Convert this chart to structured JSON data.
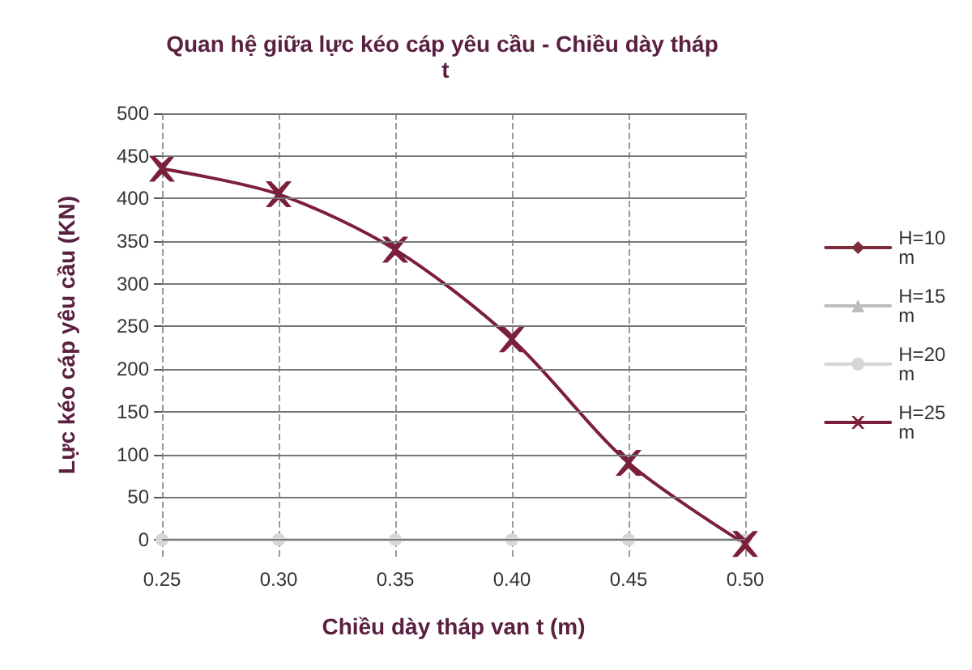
{
  "chart_data": {
    "type": "line",
    "title": "Quan hệ giữa lực kéo cáp yêu cầu - Chiều dày tháp t",
    "xlabel": "Chiều dày tháp van t (m)",
    "ylabel": "Lực kéo cáp yêu cầu (KN)",
    "categories": [
      "0.25",
      "0.30",
      "0.35",
      "0.40",
      "0.45",
      "0.50"
    ],
    "series": [
      {
        "name": "H=10 m",
        "color": "#7b2d3b",
        "marker": "diamond",
        "values": [
          null,
          null,
          null,
          null,
          null,
          null
        ]
      },
      {
        "name": "H=15 m",
        "color": "#bdbdbd",
        "marker": "triangle",
        "values": [
          null,
          null,
          null,
          null,
          null,
          null
        ]
      },
      {
        "name": "H=20 m",
        "color": "#d6d6d6",
        "marker": "circle",
        "values": [
          0,
          0,
          0,
          0,
          0,
          0
        ]
      },
      {
        "name": "H=25 m",
        "color": "#7b1f3a",
        "marker": "cross",
        "values": [
          435,
          405,
          340,
          235,
          90,
          -5
        ]
      }
    ],
    "ylim": [
      -20,
      500
    ],
    "yticks": [
      0,
      50,
      100,
      150,
      200,
      250,
      300,
      350,
      400,
      450,
      500
    ],
    "grid": true,
    "legend": "right",
    "line_style": "solid"
  }
}
